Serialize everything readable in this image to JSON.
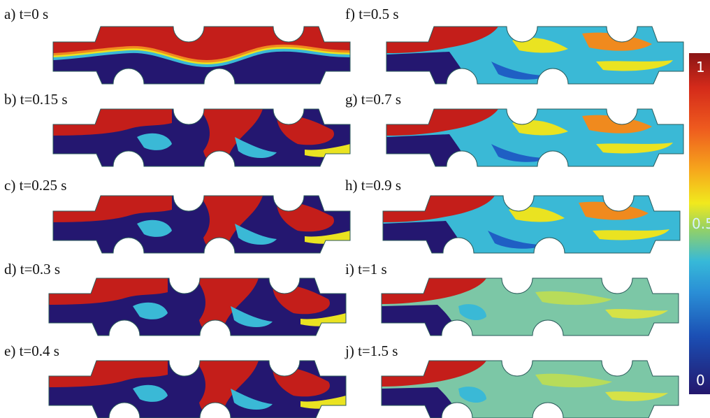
{
  "panels": [
    {
      "id": "a",
      "label": "a) t=0 s",
      "pattern": "layered"
    },
    {
      "id": "b",
      "label": "b) t=0.15 s",
      "pattern": "swirl"
    },
    {
      "id": "c",
      "label": "c) t=0.25 s",
      "pattern": "swirl"
    },
    {
      "id": "d",
      "label": "d) t=0.3 s",
      "pattern": "swirl"
    },
    {
      "id": "e",
      "label": "e) t=0.4 s",
      "pattern": "swirl"
    },
    {
      "id": "f",
      "label": "f) t=0.5 s",
      "pattern": "mixing"
    },
    {
      "id": "g",
      "label": "g) t=0.7 s",
      "pattern": "mixing"
    },
    {
      "id": "h",
      "label": "h) t=0.9 s",
      "pattern": "mixing"
    },
    {
      "id": "i",
      "label": "i) t=1 s",
      "pattern": "mixed"
    },
    {
      "id": "j",
      "label": "j) t=1.5 s",
      "pattern": "mixed"
    }
  ],
  "colorbar": {
    "max_label": "1",
    "mid_label": "0.5",
    "min_label": "0",
    "colors": {
      "high": "#c41e1a",
      "orange": "#f08a1e",
      "yellow": "#eae321",
      "cyan": "#3ab9d6",
      "blue": "#1f5fc4",
      "low": "#241770",
      "wall": "#2a5a5a"
    }
  }
}
